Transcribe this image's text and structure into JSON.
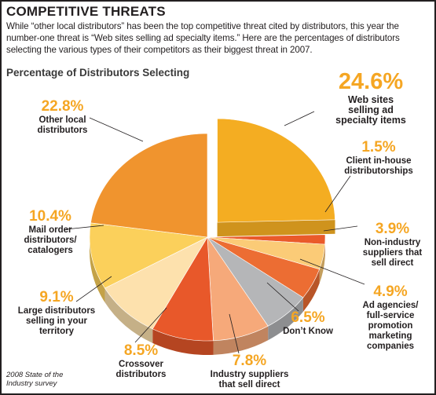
{
  "headline": "COMPETITIVE THREATS",
  "intro": "While “other local distributors” has been the top competitive threat cited by distributors, this year the number-one threat is “Web sites selling ad specialty items.” Here are the percentages of distributors selecting the various types of their competitors as their biggest threat in 2007.",
  "source": "2008 State of the Industry survey",
  "colors": {
    "accent": "#f5a623",
    "text": "#231f20"
  },
  "chart_data": {
    "type": "pie",
    "title": "Percentage of Distributors Selecting",
    "exploded_slice": "Web sites selling ad specialty items",
    "slices": [
      {
        "pct": "24.6%",
        "value": 24.6,
        "caption": [
          "Web sites",
          "selling ad",
          "specialty items"
        ],
        "color": "#f4ad22"
      },
      {
        "pct": "1.5%",
        "value": 1.5,
        "caption": [
          "Client in-house",
          "distributorships"
        ],
        "color": "#ea5a2a"
      },
      {
        "pct": "3.9%",
        "value": 3.9,
        "caption": [
          "Non-industry",
          "suppliers that",
          "sell direct"
        ],
        "color": "#fbcb77"
      },
      {
        "pct": "4.9%",
        "value": 4.9,
        "caption": [
          "Ad agencies/",
          "full-service",
          "promotion",
          "marketing",
          "companies"
        ],
        "color": "#ec6d33"
      },
      {
        "pct": "6.5%",
        "value": 6.5,
        "caption": [
          "Don’t Know"
        ],
        "color": "#b5b6b8"
      },
      {
        "pct": "7.8%",
        "value": 7.8,
        "caption": [
          "Industry suppliers",
          "that sell direct"
        ],
        "color": "#f6a97a"
      },
      {
        "pct": "8.5%",
        "value": 8.5,
        "caption": [
          "Crossover",
          "distributors"
        ],
        "color": "#e8582a"
      },
      {
        "pct": "9.1%",
        "value": 9.1,
        "caption": [
          "Large distributors",
          "selling in your",
          "territory"
        ],
        "color": "#fde1ad"
      },
      {
        "pct": "10.4%",
        "value": 10.4,
        "caption": [
          "Mail order",
          "distributors/",
          "catalogers"
        ],
        "color": "#fbd05b"
      },
      {
        "pct": "22.8%",
        "value": 22.8,
        "caption": [
          "Other local",
          "distributors"
        ],
        "color": "#f0942e"
      }
    ]
  }
}
